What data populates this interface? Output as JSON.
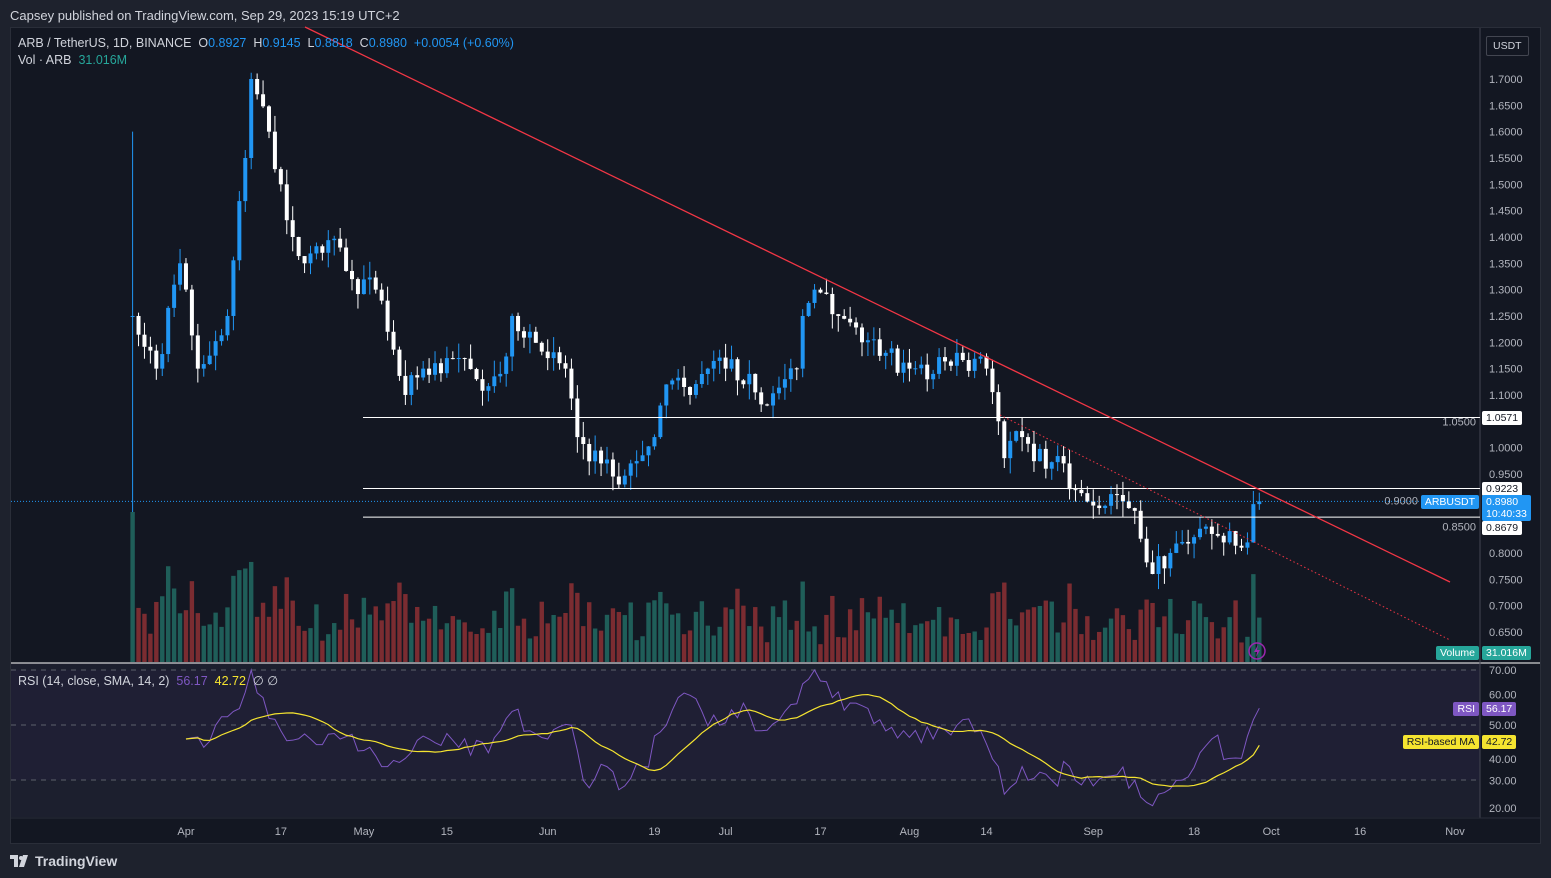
{
  "published": "Capsey published on TradingView.com, Sep 29, 2023 15:19 UTC+2",
  "legend": {
    "symbol": "ARB / TetherUS, 1D, BINANCE",
    "o_label": "O",
    "o": "0.8927",
    "h_label": "H",
    "h": "0.9145",
    "l_label": "L",
    "l": "0.8818",
    "c_label": "C",
    "c": "0.8980",
    "change": "+0.0054 (+0.60%)",
    "vol_label": "Vol · ARB",
    "vol": "31.016M"
  },
  "rsi_legend": {
    "label": "RSI (14, close, SMA, 14, 2)",
    "rsi": "56.17",
    "ma": "42.72",
    "na1": "∅",
    "na2": "∅"
  },
  "currency": "USDT",
  "price_axis": [
    "1.7000",
    "1.6500",
    "1.6000",
    "1.5500",
    "1.5000",
    "1.4500",
    "1.4000",
    "1.3500",
    "1.3000",
    "1.2500",
    "1.2000",
    "1.1500",
    "1.1000",
    "1.0500",
    "1.0000",
    "0.9500",
    "0.9000",
    "0.8500",
    "0.8000",
    "0.7500",
    "0.7000",
    "0.6500"
  ],
  "rsi_axis": [
    "70.00",
    "60.00",
    "50.00",
    "40.00",
    "30.00",
    "20.00"
  ],
  "time_axis": [
    {
      "label": "Apr",
      "day": 9
    },
    {
      "label": "17",
      "day": 25
    },
    {
      "label": "May",
      "day": 39
    },
    {
      "label": "15",
      "day": 53
    },
    {
      "label": "Jun",
      "day": 70
    },
    {
      "label": "19",
      "day": 88
    },
    {
      "label": "Jul",
      "day": 100
    },
    {
      "label": "17",
      "day": 116
    },
    {
      "label": "Aug",
      "day": 131
    },
    {
      "label": "14",
      "day": 144
    },
    {
      "label": "Sep",
      "day": 162
    },
    {
      "label": "18",
      "day": 179
    },
    {
      "label": "Oct",
      "day": 192
    },
    {
      "label": "16",
      "day": 207
    },
    {
      "label": "Nov",
      "day": 223
    }
  ],
  "tags": {
    "level1": "1.0571",
    "level2": "0.9223",
    "level3": "0.8679",
    "symbol": "ARBUSDT",
    "price": "0.8980",
    "countdown": "10:40:33",
    "volume_label": "Volume",
    "volume_value": "31.016M",
    "rsi_label": "RSI",
    "rsi_value": "56.17",
    "ma_label": "RSI-based MA",
    "ma_value": "42.72"
  },
  "footer": "TradingView",
  "colors": {
    "up": "#2196f3",
    "down": "#ffffff",
    "vol_up": "#1f5e59",
    "vol_down": "#7b2c31",
    "trend": "#f23645",
    "rsi": "#7e57c2",
    "ma": "#f5e430"
  },
  "chart_data": {
    "type": "candlestick",
    "title": "ARB / TetherUS, 1D, BINANCE",
    "start_date": "2023-03-23",
    "end_date": "2023-09-29",
    "ylim": [
      0.62,
      1.78
    ],
    "close_keypoints": [
      [
        0,
        1.25
      ],
      [
        4,
        1.15
      ],
      [
        8,
        1.35
      ],
      [
        11,
        1.15
      ],
      [
        16,
        1.25
      ],
      [
        19,
        1.55
      ],
      [
        20,
        1.7
      ],
      [
        23,
        1.6
      ],
      [
        25,
        1.5
      ],
      [
        27,
        1.4
      ],
      [
        29,
        1.35
      ],
      [
        32,
        1.37
      ],
      [
        35,
        1.38
      ],
      [
        37,
        1.32
      ],
      [
        41,
        1.3
      ],
      [
        43,
        1.22
      ],
      [
        46,
        1.1
      ],
      [
        49,
        1.15
      ],
      [
        53,
        1.17
      ],
      [
        58,
        1.13
      ],
      [
        62,
        1.14
      ],
      [
        64,
        1.25
      ],
      [
        67,
        1.22
      ],
      [
        70,
        1.17
      ],
      [
        73,
        1.15
      ],
      [
        75,
        1.02
      ],
      [
        79,
        0.97
      ],
      [
        82,
        0.93
      ],
      [
        84,
        0.97
      ],
      [
        88,
        1.02
      ],
      [
        90,
        1.12
      ],
      [
        94,
        1.1
      ],
      [
        97,
        1.15
      ],
      [
        100,
        1.15
      ],
      [
        104,
        1.14
      ],
      [
        107,
        1.08
      ],
      [
        110,
        1.13
      ],
      [
        112,
        1.15
      ],
      [
        113,
        1.25
      ],
      [
        115,
        1.3
      ],
      [
        119,
        1.25
      ],
      [
        123,
        1.2
      ],
      [
        127,
        1.18
      ],
      [
        131,
        1.15
      ],
      [
        135,
        1.14
      ],
      [
        139,
        1.18
      ],
      [
        144,
        1.15
      ],
      [
        146,
        1.05
      ],
      [
        147,
        0.98
      ],
      [
        150,
        1.02
      ],
      [
        154,
        0.96
      ],
      [
        157,
        0.97
      ],
      [
        159,
        0.92
      ],
      [
        162,
        0.89
      ],
      [
        166,
        0.91
      ],
      [
        169,
        0.88
      ],
      [
        172,
        0.76
      ],
      [
        175,
        0.8
      ],
      [
        179,
        0.83
      ],
      [
        181,
        0.85
      ],
      [
        184,
        0.82
      ],
      [
        187,
        0.81
      ],
      [
        188,
        0.82
      ],
      [
        189,
        0.8927
      ],
      [
        190,
        0.898
      ]
    ],
    "levels": [
      1.0571,
      0.9223,
      0.8679
    ],
    "trendline": {
      "from": [
        "2023-04-12",
        1.745
      ],
      "to": [
        "2023-11-01",
        0.745
      ]
    },
    "dotted_trendline": {
      "from": [
        "2023-08-16",
        1.06
      ],
      "to": [
        "2023-11-01",
        0.63
      ]
    },
    "rsi_keypoints": [
      [
        9,
        45
      ],
      [
        12,
        42
      ],
      [
        14,
        50
      ],
      [
        17,
        55
      ],
      [
        20,
        70
      ],
      [
        22,
        60
      ],
      [
        25,
        48
      ],
      [
        30,
        45
      ],
      [
        35,
        45
      ],
      [
        40,
        42
      ],
      [
        42,
        35
      ],
      [
        46,
        38
      ],
      [
        50,
        45
      ],
      [
        55,
        42
      ],
      [
        60,
        40
      ],
      [
        64,
        55
      ],
      [
        67,
        48
      ],
      [
        70,
        45
      ],
      [
        74,
        50
      ],
      [
        76,
        30
      ],
      [
        80,
        35
      ],
      [
        83,
        28
      ],
      [
        86,
        35
      ],
      [
        90,
        50
      ],
      [
        92,
        60
      ],
      [
        96,
        55
      ],
      [
        99,
        50
      ],
      [
        103,
        58
      ],
      [
        106,
        48
      ],
      [
        110,
        55
      ],
      [
        113,
        65
      ],
      [
        115,
        70
      ],
      [
        118,
        60
      ],
      [
        122,
        58
      ],
      [
        126,
        52
      ],
      [
        130,
        48
      ],
      [
        135,
        45
      ],
      [
        140,
        52
      ],
      [
        143,
        48
      ],
      [
        146,
        35
      ],
      [
        147,
        25
      ],
      [
        150,
        35
      ],
      [
        155,
        30
      ],
      [
        158,
        35
      ],
      [
        162,
        28
      ],
      [
        166,
        32
      ],
      [
        169,
        30
      ],
      [
        171,
        22
      ],
      [
        173,
        25
      ],
      [
        176,
        30
      ],
      [
        180,
        40
      ],
      [
        182,
        45
      ],
      [
        185,
        38
      ],
      [
        187,
        38
      ],
      [
        189,
        52
      ],
      [
        190,
        56.17
      ]
    ],
    "rsi_last": 56.17,
    "rsi_ma_last": 42.72,
    "volume_last": "31.016M"
  }
}
